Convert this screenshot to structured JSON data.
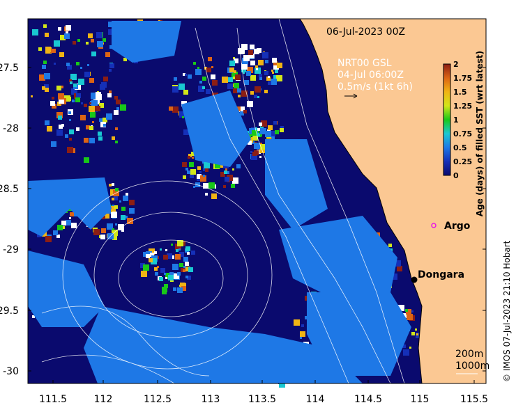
{
  "map": {
    "date_label": "06-Jul-2023 00Z",
    "current_source": "NRT00 GSL",
    "current_time": "04-Jul 06:00Z",
    "scale_label": "0.5m/s (1kt 6h)",
    "x_ticks": [
      "111.5",
      "112",
      "112.5",
      "113",
      "113.5",
      "114",
      "114.5",
      "115",
      "115.5"
    ],
    "y_ticks": [
      "-27.5",
      "-28",
      "-28.5",
      "-29",
      "-29.5",
      "-30"
    ],
    "colorbar": {
      "title": "Age (days) of filled SST (wrt latest)",
      "ticks": [
        "0",
        "0.25",
        "0.5",
        "0.75",
        "1",
        "1.25",
        "1.5",
        "1.75",
        "2"
      ],
      "colors": [
        "#0a0a6e",
        "#1530b8",
        "#1e78e6",
        "#19c8d2",
        "#19c819",
        "#d2e619",
        "#f0b414",
        "#dc6414",
        "#8c1e14"
      ]
    },
    "places": [
      {
        "name": "Argo",
        "type": "argo-float"
      },
      {
        "name": "Dongara",
        "type": "town"
      }
    ],
    "depth_labels": [
      "200m",
      "1000m"
    ],
    "credit": "© IMOS 07-Jul-2023 21:10 Hobart",
    "colors": {
      "land": "#fbc893",
      "deep": "#0a0a6e",
      "argo": "#e619e6"
    }
  }
}
